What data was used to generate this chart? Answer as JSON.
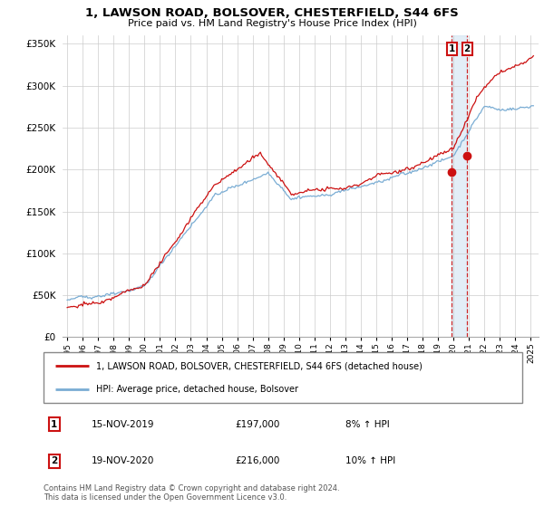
{
  "title": "1, LAWSON ROAD, BOLSOVER, CHESTERFIELD, S44 6FS",
  "subtitle": "Price paid vs. HM Land Registry's House Price Index (HPI)",
  "legend_line1": "1, LAWSON ROAD, BOLSOVER, CHESTERFIELD, S44 6FS (detached house)",
  "legend_line2": "HPI: Average price, detached house, Bolsover",
  "footer": "Contains HM Land Registry data © Crown copyright and database right 2024.\nThis data is licensed under the Open Government Licence v3.0.",
  "table_rows": [
    {
      "num": "1",
      "date": "15-NOV-2019",
      "price": "£197,000",
      "change": "8% ↑ HPI"
    },
    {
      "num": "2",
      "date": "19-NOV-2020",
      "price": "£216,000",
      "change": "10% ↑ HPI"
    }
  ],
  "sale1_year": 2019.875,
  "sale1_price": 197000,
  "sale2_year": 2020.875,
  "sale2_price": 216000,
  "hpi_color": "#7aadd4",
  "price_color": "#cc1111",
  "vline_color": "#cc1111",
  "shade_color": "#c8dff0",
  "ylim": [
    0,
    360000
  ],
  "yticks": [
    0,
    50000,
    100000,
    150000,
    200000,
    250000,
    300000,
    350000
  ],
  "xlim_start": 1994.7,
  "xlim_end": 2025.5,
  "noise_seed": 42
}
